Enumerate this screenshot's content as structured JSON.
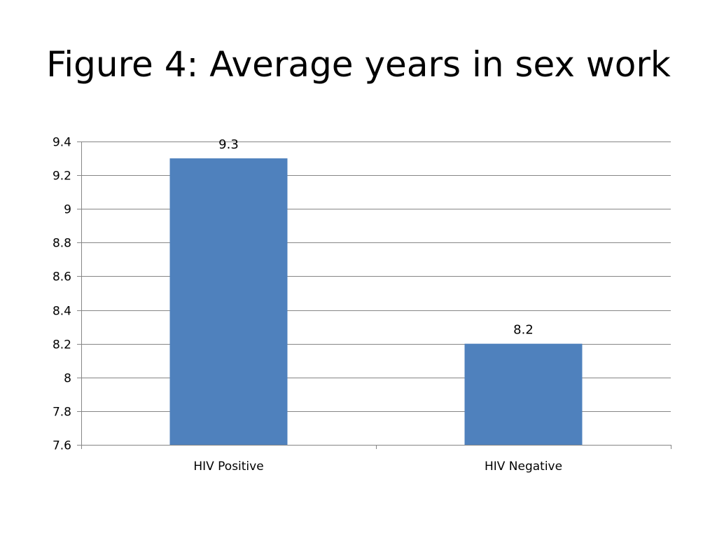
{
  "slide": {
    "title": "Figure 4: Average years in sex work"
  },
  "chart_data": {
    "type": "bar",
    "title": "Figure 4: Average years in sex work",
    "categories": [
      "HIV Positive",
      "HIV Negative"
    ],
    "series": [
      {
        "values": [
          9.3,
          8.2
        ]
      }
    ],
    "data_labels": [
      "9.3",
      "8.2"
    ],
    "y_ticks": [
      "7.6",
      "7.8",
      "8",
      "8.2",
      "8.4",
      "8.6",
      "8.8",
      "9",
      "9.2",
      "9.4"
    ],
    "ylim": [
      7.6,
      9.4
    ],
    "ytick_step": 0.2,
    "grid": true,
    "legend": "none",
    "bar_color": "#4F81BD",
    "grid_color": "#868686",
    "xlabel": "",
    "ylabel": ""
  }
}
